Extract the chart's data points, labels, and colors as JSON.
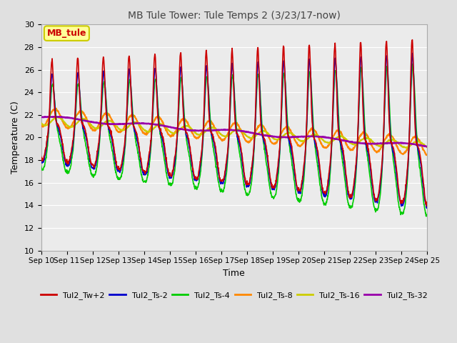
{
  "title": "MB Tule Tower: Tule Temps 2 (3/23/17-now)",
  "xlabel": "Time",
  "ylabel": "Temperature (C)",
  "ylim": [
    10,
    30
  ],
  "yticks": [
    10,
    12,
    14,
    16,
    18,
    20,
    22,
    24,
    26,
    28,
    30
  ],
  "x_tick_labels": [
    "Sep 10",
    "Sep 11",
    "Sep 12",
    "Sep 13",
    "Sep 14",
    "Sep 15",
    "Sep 16",
    "Sep 17",
    "Sep 18",
    "Sep 19",
    "Sep 20",
    "Sep 21",
    "Sep 22",
    "Sep 23",
    "Sep 24",
    "Sep 25"
  ],
  "series": {
    "Tul2_Tw+2": {
      "color": "#cc0000",
      "lw": 1.2
    },
    "Tul2_Ts-2": {
      "color": "#0000cc",
      "lw": 1.2
    },
    "Tul2_Ts-4": {
      "color": "#00cc00",
      "lw": 1.2
    },
    "Tul2_Ts-8": {
      "color": "#ff8800",
      "lw": 1.5
    },
    "Tul2_Ts-16": {
      "color": "#cccc00",
      "lw": 1.5
    },
    "Tul2_Ts-32": {
      "color": "#9900aa",
      "lw": 1.8
    }
  },
  "legend_colors": {
    "Tul2_Tw+2": "#cc0000",
    "Tul2_Ts-2": "#0000cc",
    "Tul2_Ts-4": "#00cc00",
    "Tul2_Ts-8": "#ff8800",
    "Tul2_Ts-16": "#cccc00",
    "Tul2_Ts-32": "#9900aa"
  },
  "background_color": "#e0e0e0",
  "axes_background": "#ebebeb",
  "grid_color": "#ffffff",
  "annotation_box": {
    "text": "MB_tule",
    "color": "#cc0000",
    "bg": "#ffff99",
    "edge": "#cccc00"
  }
}
